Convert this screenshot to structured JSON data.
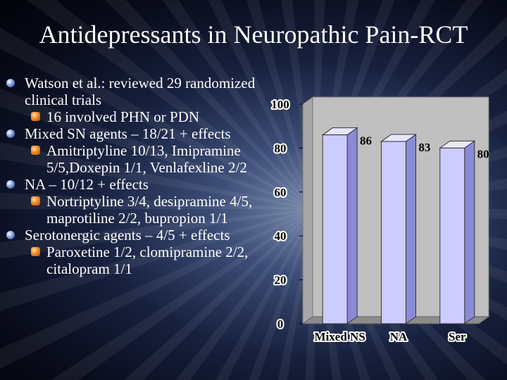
{
  "slide": {
    "title": "Antidepressants in Neuropathic Pain-RCT",
    "bullets": [
      {
        "text": "Watson et al.: reviewed 29 randomized clinical trials",
        "subs": [
          "16 involved PHN or PDN"
        ]
      },
      {
        "text": "Mixed SN agents – 18/21 + effects",
        "subs": [
          "Amitriptyline 10/13, Imipramine 5/5,Doxepin 1/1, Venlafexline 2/2"
        ]
      },
      {
        "text": "NA – 10/12 + effects",
        "subs": [
          "Nortriptyline 3/4,  desipramine 4/5, maprotiline 2/2, bupropion 1/1"
        ]
      },
      {
        "text": "Serotonergic agents – 4/5 + effects",
        "subs": [
          "Paroxetine 1/2, clomipramine 2/2, citalopram 1/1"
        ]
      }
    ]
  },
  "colors": {
    "bar_fill": "#ccccff",
    "bar_edge": "#333333",
    "wall": "#c0c0c0",
    "floor": "#8c8c8c"
  },
  "chart_data": {
    "type": "bar",
    "categories": [
      "Mixed NS",
      "NA",
      "Ser"
    ],
    "values": [
      86,
      83,
      80
    ],
    "data_labels": [
      "86",
      "83",
      "80"
    ],
    "ylim": [
      0,
      100
    ],
    "yticks": [
      0,
      20,
      40,
      60,
      80,
      100
    ],
    "grid": false,
    "legend": "none",
    "style": "3d-column"
  }
}
